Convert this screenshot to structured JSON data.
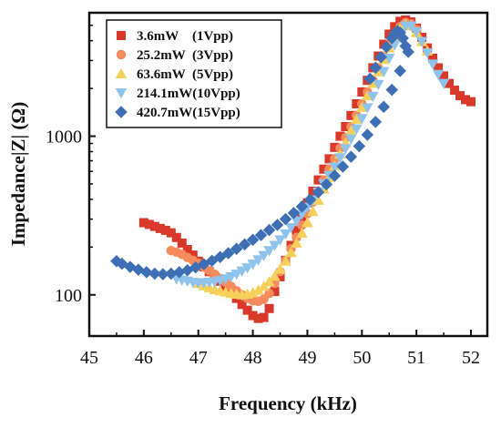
{
  "chart_data": {
    "type": "scatter",
    "title": "",
    "xlabel": "Frequency (kHz)",
    "ylabel": "Impedance|Z| (Ω)",
    "xlim": [
      45,
      52.3
    ],
    "ylim": [
      55,
      6000
    ],
    "yscale": "log",
    "xticks": [
      45,
      46,
      47,
      48,
      49,
      50,
      51,
      52
    ],
    "yticks": [
      100,
      1000
    ],
    "xtick_labels": [
      "45",
      "46",
      "47",
      "48",
      "49",
      "50",
      "51",
      "52"
    ],
    "ytick_labels": [
      "100",
      "1000"
    ],
    "grid": false,
    "legend_position": "top-left",
    "series": [
      {
        "name": "3.6mW    (1Vpp)",
        "marker": "square",
        "color": "#d8392b",
        "points": [
          [
            46.0,
            285
          ],
          [
            46.1,
            278
          ],
          [
            46.2,
            270
          ],
          [
            46.3,
            262
          ],
          [
            46.4,
            255
          ],
          [
            46.5,
            246
          ],
          [
            46.6,
            230
          ],
          [
            46.7,
            212
          ],
          [
            46.8,
            193
          ],
          [
            46.9,
            178
          ],
          [
            47.0,
            163
          ],
          [
            47.1,
            150
          ],
          [
            47.2,
            140
          ],
          [
            47.3,
            130
          ],
          [
            47.4,
            122
          ],
          [
            47.5,
            113
          ],
          [
            47.6,
            104
          ],
          [
            47.7,
            95
          ],
          [
            47.8,
            87
          ],
          [
            47.9,
            80
          ],
          [
            48.0,
            74
          ],
          [
            48.1,
            71
          ],
          [
            48.2,
            72
          ],
          [
            48.3,
            82
          ],
          [
            48.4,
            105
          ],
          [
            48.5,
            130
          ],
          [
            48.6,
            165
          ],
          [
            48.7,
            205
          ],
          [
            48.8,
            255
          ],
          [
            48.9,
            310
          ],
          [
            49.0,
            380
          ],
          [
            49.1,
            450
          ],
          [
            49.2,
            530
          ],
          [
            49.3,
            620
          ],
          [
            49.4,
            720
          ],
          [
            49.5,
            850
          ],
          [
            49.6,
            1000
          ],
          [
            49.7,
            1150
          ],
          [
            49.8,
            1350
          ],
          [
            49.9,
            1600
          ],
          [
            50.0,
            1900
          ],
          [
            50.1,
            2250
          ],
          [
            50.2,
            2700
          ],
          [
            50.3,
            3200
          ],
          [
            50.4,
            3800
          ],
          [
            50.5,
            4400
          ],
          [
            50.6,
            4900
          ],
          [
            50.7,
            5300
          ],
          [
            50.8,
            5400
          ],
          [
            50.9,
            5250
          ],
          [
            51.0,
            4800
          ],
          [
            51.1,
            4200
          ],
          [
            51.2,
            3600
          ],
          [
            51.3,
            3100
          ],
          [
            51.4,
            2700
          ],
          [
            51.5,
            2400
          ],
          [
            51.6,
            2150
          ],
          [
            51.7,
            1950
          ],
          [
            51.8,
            1800
          ],
          [
            51.9,
            1700
          ],
          [
            52.0,
            1650
          ]
        ]
      },
      {
        "name": "25.2mW  (3Vpp)",
        "marker": "circle",
        "color": "#f58a5c",
        "points": [
          [
            46.5,
            190
          ],
          [
            46.6,
            186
          ],
          [
            46.7,
            180
          ],
          [
            46.8,
            172
          ],
          [
            46.9,
            165
          ],
          [
            47.0,
            158
          ],
          [
            47.1,
            150
          ],
          [
            47.2,
            142
          ],
          [
            47.3,
            135
          ],
          [
            47.4,
            127
          ],
          [
            47.5,
            120
          ],
          [
            47.6,
            113
          ],
          [
            47.7,
            106
          ],
          [
            47.8,
            100
          ],
          [
            47.9,
            95
          ],
          [
            48.0,
            92
          ],
          [
            48.1,
            91
          ],
          [
            48.2,
            94
          ],
          [
            48.3,
            102
          ],
          [
            48.4,
            118
          ],
          [
            48.5,
            140
          ],
          [
            48.6,
            165
          ],
          [
            48.7,
            195
          ],
          [
            48.8,
            230
          ],
          [
            48.9,
            275
          ],
          [
            49.0,
            325
          ],
          [
            49.1,
            385
          ],
          [
            49.2,
            450
          ],
          [
            49.3,
            530
          ],
          [
            49.4,
            620
          ],
          [
            49.5,
            720
          ],
          [
            49.6,
            840
          ],
          [
            49.7,
            980
          ],
          [
            49.8,
            1150
          ],
          [
            49.9,
            1350
          ],
          [
            50.0,
            1600
          ],
          [
            50.1,
            1900
          ],
          [
            50.2,
            2250
          ],
          [
            50.3,
            2700
          ],
          [
            50.4,
            3200
          ],
          [
            50.5,
            3800
          ],
          [
            50.6,
            4400
          ],
          [
            50.7,
            4900
          ],
          [
            50.8,
            5200
          ],
          [
            50.9,
            5100
          ],
          [
            51.0,
            4700
          ]
        ]
      },
      {
        "name": "63.6mW  (5Vpp)",
        "marker": "triangle-up",
        "color": "#f7d05c",
        "points": [
          [
            47.0,
            118
          ],
          [
            47.1,
            114
          ],
          [
            47.2,
            111
          ],
          [
            47.3,
            108
          ],
          [
            47.4,
            106
          ],
          [
            47.5,
            104
          ],
          [
            47.6,
            102
          ],
          [
            47.7,
            101
          ],
          [
            47.8,
            100
          ],
          [
            47.9,
            101
          ],
          [
            48.0,
            103
          ],
          [
            48.1,
            107
          ],
          [
            48.2,
            113
          ],
          [
            48.3,
            121
          ],
          [
            48.4,
            131
          ],
          [
            48.5,
            145
          ],
          [
            48.6,
            163
          ],
          [
            48.7,
            185
          ],
          [
            48.8,
            212
          ],
          [
            48.9,
            245
          ],
          [
            49.0,
            285
          ],
          [
            49.1,
            335
          ],
          [
            49.2,
            395
          ],
          [
            49.3,
            465
          ],
          [
            49.4,
            550
          ],
          [
            49.5,
            650
          ],
          [
            49.6,
            770
          ],
          [
            49.7,
            910
          ],
          [
            49.8,
            1080
          ],
          [
            49.9,
            1280
          ],
          [
            50.0,
            1520
          ],
          [
            50.1,
            1800
          ],
          [
            50.2,
            2150
          ],
          [
            50.3,
            2550
          ],
          [
            50.4,
            3050
          ],
          [
            50.5,
            3600
          ],
          [
            50.6,
            4200
          ],
          [
            50.7,
            4750
          ],
          [
            50.8,
            5050
          ],
          [
            50.9,
            4950
          ],
          [
            51.0,
            4500
          ],
          [
            51.1,
            3950
          ],
          [
            51.2,
            3450
          ]
        ]
      },
      {
        "name": "214.1mW(10Vpp)",
        "marker": "triangle-down",
        "color": "#8fc3ec",
        "points": [
          [
            46.6,
            126
          ],
          [
            46.7,
            124
          ],
          [
            46.8,
            122
          ],
          [
            46.9,
            120
          ],
          [
            47.0,
            119
          ],
          [
            47.1,
            119
          ],
          [
            47.2,
            120
          ],
          [
            47.3,
            121
          ],
          [
            47.4,
            123
          ],
          [
            47.5,
            126
          ],
          [
            47.6,
            130
          ],
          [
            47.7,
            135
          ],
          [
            47.8,
            141
          ],
          [
            47.9,
            148
          ],
          [
            48.0,
            156
          ],
          [
            48.1,
            166
          ],
          [
            48.2,
            177
          ],
          [
            48.3,
            190
          ],
          [
            48.4,
            205
          ],
          [
            48.5,
            222
          ],
          [
            48.6,
            242
          ],
          [
            48.7,
            265
          ],
          [
            48.8,
            292
          ],
          [
            48.9,
            322
          ],
          [
            49.0,
            357
          ],
          [
            49.1,
            397
          ],
          [
            49.2,
            445
          ],
          [
            49.3,
            500
          ],
          [
            49.4,
            565
          ],
          [
            49.5,
            640
          ],
          [
            49.6,
            730
          ],
          [
            49.7,
            835
          ],
          [
            49.8,
            960
          ],
          [
            49.9,
            1110
          ],
          [
            50.0,
            1290
          ],
          [
            50.1,
            1510
          ],
          [
            50.2,
            1780
          ],
          [
            50.3,
            2120
          ],
          [
            50.4,
            2550
          ],
          [
            50.5,
            3100
          ],
          [
            50.6,
            3750
          ],
          [
            50.7,
            4450
          ],
          [
            50.8,
            4950
          ],
          [
            50.9,
            4950
          ],
          [
            51.0,
            4550
          ],
          [
            51.1,
            3950
          ],
          [
            51.2,
            3350
          ],
          [
            51.3,
            2850
          ],
          [
            51.4,
            2450
          ],
          [
            51.5,
            2150
          ]
        ]
      },
      {
        "name": "420.7mW(15Vpp)",
        "marker": "diamond",
        "color": "#3e6fb5",
        "points": [
          [
            45.5,
            163
          ],
          [
            45.6,
            157
          ],
          [
            45.75,
            150
          ],
          [
            45.9,
            144
          ],
          [
            46.05,
            139
          ],
          [
            46.2,
            136
          ],
          [
            46.35,
            135
          ],
          [
            46.5,
            136
          ],
          [
            46.65,
            139
          ],
          [
            46.8,
            143
          ],
          [
            46.95,
            149
          ],
          [
            47.1,
            156
          ],
          [
            47.25,
            164
          ],
          [
            47.4,
            173
          ],
          [
            47.55,
            183
          ],
          [
            47.7,
            195
          ],
          [
            47.85,
            208
          ],
          [
            48.0,
            222
          ],
          [
            48.15,
            238
          ],
          [
            48.3,
            256
          ],
          [
            48.45,
            276
          ],
          [
            48.6,
            300
          ],
          [
            48.75,
            328
          ],
          [
            48.9,
            360
          ],
          [
            49.05,
            398
          ],
          [
            49.2,
            443
          ],
          [
            49.35,
            497
          ],
          [
            49.5,
            563
          ],
          [
            49.65,
            643
          ],
          [
            49.8,
            742
          ],
          [
            49.95,
            865
          ],
          [
            50.1,
            1020
          ],
          [
            50.25,
            1230
          ],
          [
            50.4,
            1530
          ],
          [
            50.55,
            1960
          ],
          [
            50.7,
            2580
          ],
          [
            50.85,
            3400
          ]
        ]
      },
      {
        "name": "",
        "marker": "diamond",
        "color": "#3e6fb5",
        "points": [
          [
            50.15,
            2300
          ],
          [
            50.25,
            2700
          ],
          [
            50.35,
            3150
          ],
          [
            50.45,
            3650
          ],
          [
            50.55,
            4150
          ],
          [
            50.6,
            4450
          ],
          [
            50.65,
            4600
          ],
          [
            50.7,
            4500
          ],
          [
            50.75,
            4150
          ],
          [
            50.8,
            3700
          ]
        ]
      }
    ]
  }
}
